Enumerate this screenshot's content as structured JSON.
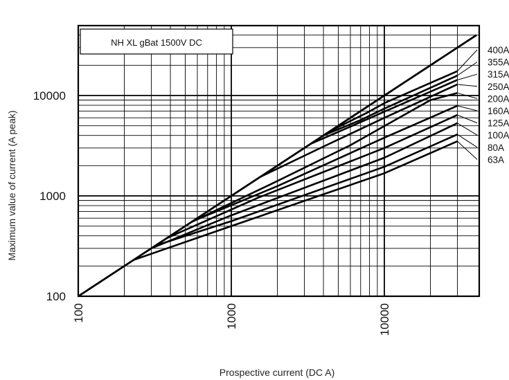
{
  "chart_data": {
    "type": "line",
    "title": "NH XL gBat 1500V DC",
    "xlabel": "Prospective current (DC A)",
    "ylabel": "Maximum value of current (A peak)",
    "x_scale": "log",
    "y_scale": "log",
    "xlim": [
      100,
      40000
    ],
    "ylim": [
      100,
      50000
    ],
    "grid": true,
    "x_ticks": [
      100,
      1000,
      10000
    ],
    "y_ticks": [
      100,
      1000,
      10000
    ],
    "x_tick_labels": [
      "100",
      "1000",
      "10000"
    ],
    "y_tick_labels": [
      "100",
      "1000",
      "10000"
    ],
    "reference_line": {
      "x": [
        100,
        40000
      ],
      "y": [
        100,
        40000
      ]
    },
    "series": [
      {
        "name": "400A",
        "x": [
          4400,
          7800,
          10000,
          30000
        ],
        "y": [
          4400,
          6800,
          8400,
          17500
        ]
      },
      {
        "name": "355A",
        "x": [
          4000,
          7000,
          10000,
          30000
        ],
        "y": [
          4000,
          5700,
          7400,
          15800
        ]
      },
      {
        "name": "315A",
        "x": [
          3300,
          6000,
          10000,
          30000
        ],
        "y": [
          3300,
          4900,
          6900,
          14300
        ]
      },
      {
        "name": "250A",
        "x": [
          1550,
          4000,
          10000,
          30000
        ],
        "y": [
          1550,
          3100,
          6000,
          12900
        ]
      },
      {
        "name": "200A",
        "x": [
          550,
          1800,
          6000,
          20000,
          30000
        ],
        "y": [
          550,
          1300,
          3200,
          9000,
          10600
        ]
      },
      {
        "name": "160A",
        "x": [
          560,
          2000,
          10000,
          30000
        ],
        "y": [
          560,
          1250,
          3800,
          7900
        ]
      },
      {
        "name": "125A",
        "x": [
          380,
          1500,
          10000,
          30000
        ],
        "y": [
          380,
          960,
          3000,
          6400
        ]
      },
      {
        "name": "100A",
        "x": [
          300,
          1000,
          10000,
          30000
        ],
        "y": [
          300,
          640,
          2400,
          5300
        ]
      },
      {
        "name": "80A",
        "x": [
          320,
          1000,
          10000,
          30000
        ],
        "y": [
          320,
          560,
          1950,
          4100
        ]
      },
      {
        "name": "63A",
        "x": [
          230,
          1000,
          10000,
          30000
        ],
        "y": [
          230,
          500,
          1680,
          3500
        ]
      }
    ]
  }
}
